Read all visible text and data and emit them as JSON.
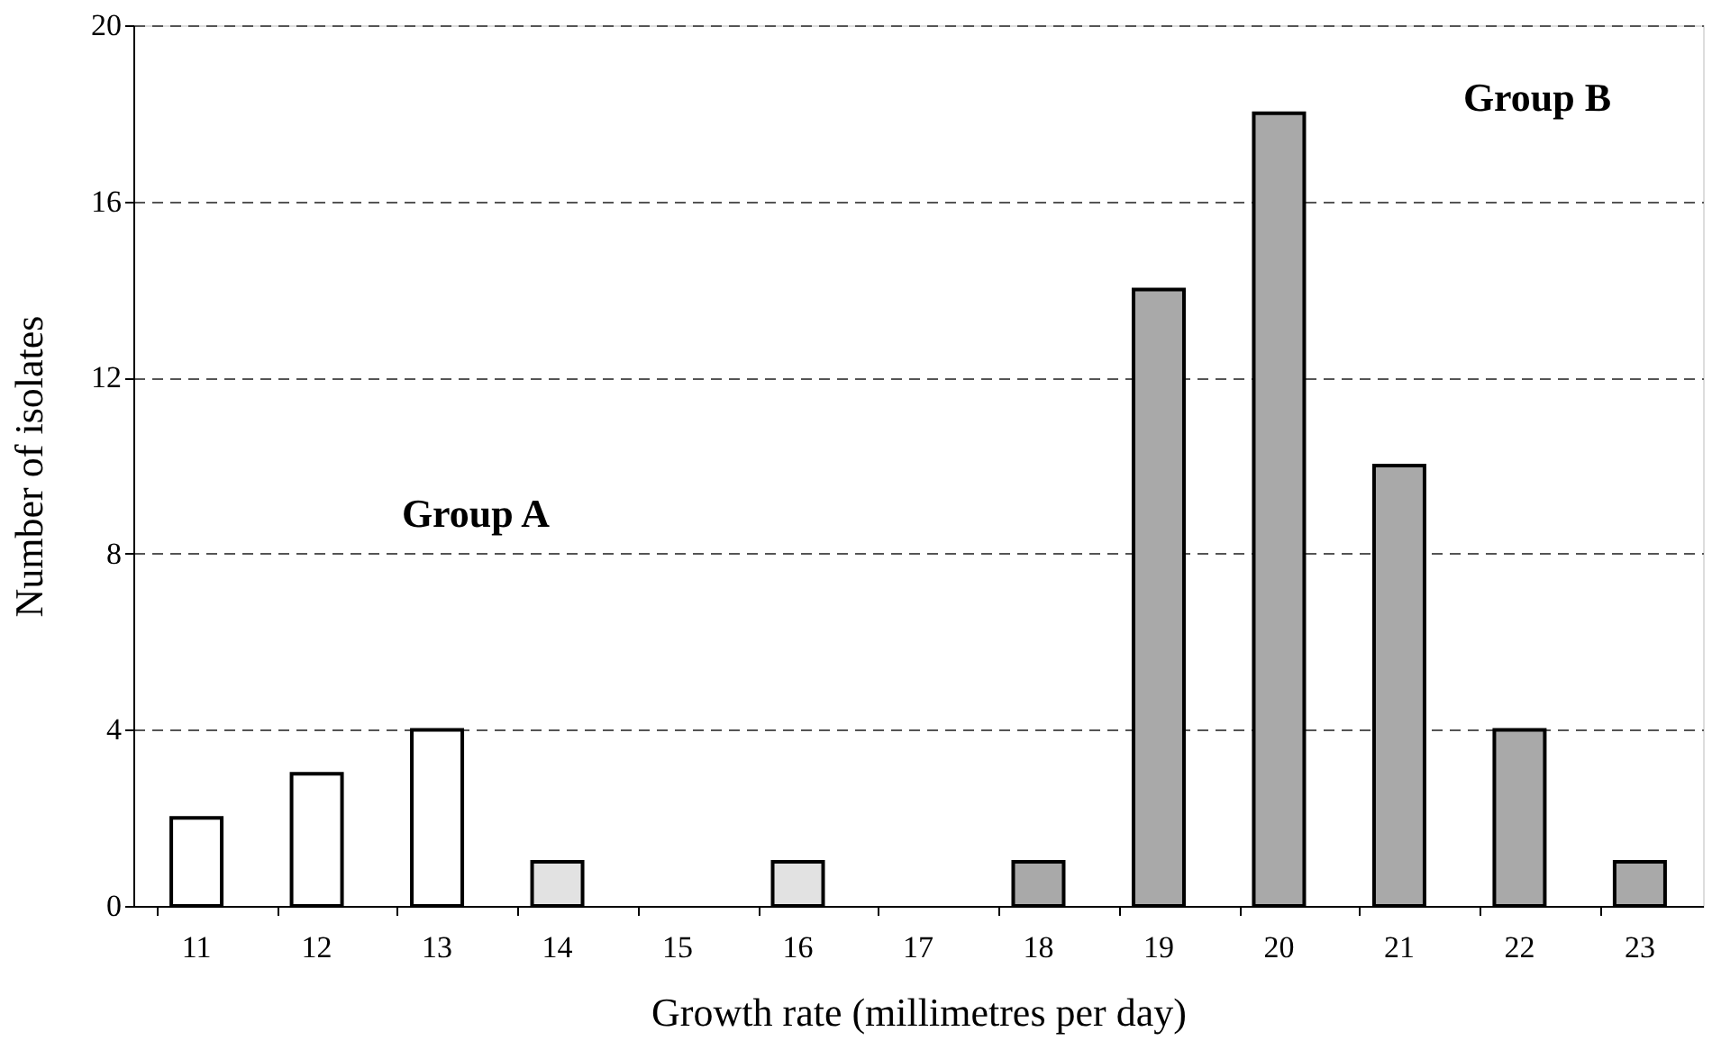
{
  "chart_data": {
    "type": "bar",
    "xlabel": "Growth rate  (millimetres per day)",
    "ylabel": "Number of isolates",
    "categories": [
      "11",
      "12",
      "13",
      "14",
      "15",
      "16",
      "17",
      "18",
      "19",
      "20",
      "21",
      "22",
      "23"
    ],
    "values": [
      2,
      3,
      4,
      1,
      null,
      1,
      null,
      1,
      14,
      18,
      10,
      4,
      1
    ],
    "colors": [
      "#ffffff",
      "#ffffff",
      "#ffffff",
      "#e2e2e2",
      "#e2e2e2",
      "#e2e2e2",
      "#a9a9a9",
      "#a9a9a9",
      "#a9a9a9",
      "#a9a9a9",
      "#a9a9a9",
      "#a9a9a9",
      "#a9a9a9"
    ],
    "ylim": [
      0,
      20
    ],
    "yticks": [
      0,
      4,
      8,
      12,
      16,
      20
    ],
    "grid": "y",
    "annotations": [
      "Group A",
      "Group B"
    ]
  }
}
